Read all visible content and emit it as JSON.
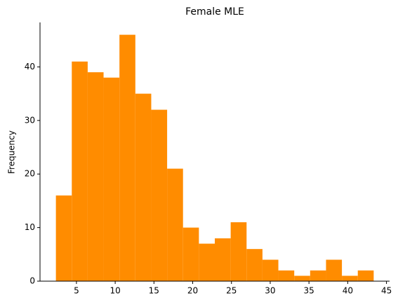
{
  "chart_data": {
    "type": "histogram",
    "title": "Female MLE",
    "y_label": "Frequency",
    "bins": [
      2.35,
      4.4,
      6.45,
      8.5,
      10.55,
      12.6,
      14.65,
      16.7,
      18.75,
      20.8,
      22.85,
      24.9,
      26.95,
      29.0,
      31.05,
      33.1,
      35.15,
      37.2,
      39.25,
      41.3,
      43.35
    ],
    "values": [
      16,
      41,
      39,
      38,
      46,
      35,
      32,
      21,
      10,
      7,
      8,
      11,
      6,
      4,
      2,
      1,
      2,
      4,
      1,
      2
    ],
    "color": "#ff8c00",
    "xlim": [
      0.3,
      45.4
    ],
    "xticks": [
      5,
      10,
      15,
      20,
      25,
      30,
      35,
      40,
      45
    ],
    "ylim": [
      0,
      48.3
    ],
    "yticks": [
      0,
      10,
      20,
      30,
      40
    ]
  }
}
